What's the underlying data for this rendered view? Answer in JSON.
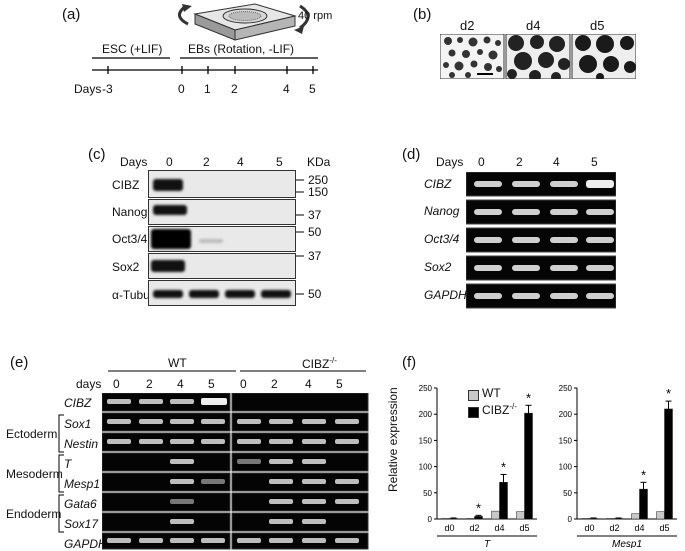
{
  "panels": {
    "a": {
      "letter": "(a)",
      "rpm": "40 rpm",
      "esc": "ESC (+LIF)",
      "ebs": "EBs (Rotation, -LIF)",
      "days_label": "Days",
      "days": [
        "-3",
        "0",
        "1",
        "2",
        "4",
        "5"
      ]
    },
    "b": {
      "letter": "(b)",
      "labels": [
        "d2",
        "d4",
        "d5"
      ]
    },
    "c": {
      "letter": "(c)",
      "days_label": "Days",
      "days": [
        "0",
        "2",
        "4",
        "5"
      ],
      "kda": "KDa",
      "rows": [
        "CIBZ",
        "Nanog",
        "Oct3/4",
        "Sox2",
        "α-Tubulin"
      ],
      "markers": [
        "250",
        "150",
        "37",
        "50",
        "37",
        "50"
      ]
    },
    "d": {
      "letter": "(d)",
      "days_label": "Days",
      "days": [
        "0",
        "2",
        "4",
        "5"
      ],
      "rows": [
        "CIBZ",
        "Nanog",
        "Oct3/4",
        "Sox2",
        "GAPDH"
      ]
    },
    "e": {
      "letter": "(e)",
      "wt": "WT",
      "ko": "CIBZ",
      "ko_sup": "-/-",
      "days_label": "days",
      "days": [
        "0",
        "2",
        "4",
        "5",
        "0",
        "2",
        "4",
        "5"
      ],
      "rows": [
        "CIBZ",
        "Sox1",
        "Nestin",
        "T",
        "Mesp1",
        "Gata6",
        "Sox17",
        "GAPDH"
      ],
      "groups": [
        "Ectoderm",
        "Mesoderm",
        "Endoderm"
      ]
    },
    "f": {
      "letter": "(f)",
      "ylabel": "Relative expression",
      "legend_wt": "WT",
      "legend_ko": "CIBZ",
      "legend_ko_sup": "-/-"
    }
  },
  "chart_data": [
    {
      "type": "bar",
      "xlabel": "T",
      "ylabel": "Relative expression",
      "categories": [
        "d0",
        "d2",
        "d4",
        "d5"
      ],
      "ylim": [
        0,
        250
      ],
      "yticks": [
        "0",
        "50",
        "100",
        "150",
        "200",
        "250"
      ],
      "series": [
        {
          "name": "WT",
          "color": "#c8c8c8",
          "values": [
            1,
            1,
            15,
            14
          ]
        },
        {
          "name": "CIBZ-/-",
          "color": "#000000",
          "values": [
            1,
            5,
            70,
            202
          ]
        }
      ],
      "errors": [
        1,
        2,
        15,
        15
      ],
      "significance": [
        "",
        "*",
        "*",
        "*"
      ]
    },
    {
      "type": "bar",
      "xlabel": "Mesp1",
      "categories": [
        "d0",
        "d2",
        "d4",
        "d5"
      ],
      "ylim": [
        0,
        250
      ],
      "yticks": [
        "0",
        "50",
        "100",
        "150",
        "200",
        "250"
      ],
      "series": [
        {
          "name": "WT",
          "color": "#c8c8c8",
          "values": [
            1,
            1,
            10,
            14
          ]
        },
        {
          "name": "CIBZ-/-",
          "color": "#000000",
          "values": [
            1,
            1,
            57,
            210
          ]
        }
      ],
      "errors": [
        1,
        1,
        13,
        15
      ],
      "significance": [
        "",
        "",
        "*",
        "*"
      ]
    }
  ]
}
